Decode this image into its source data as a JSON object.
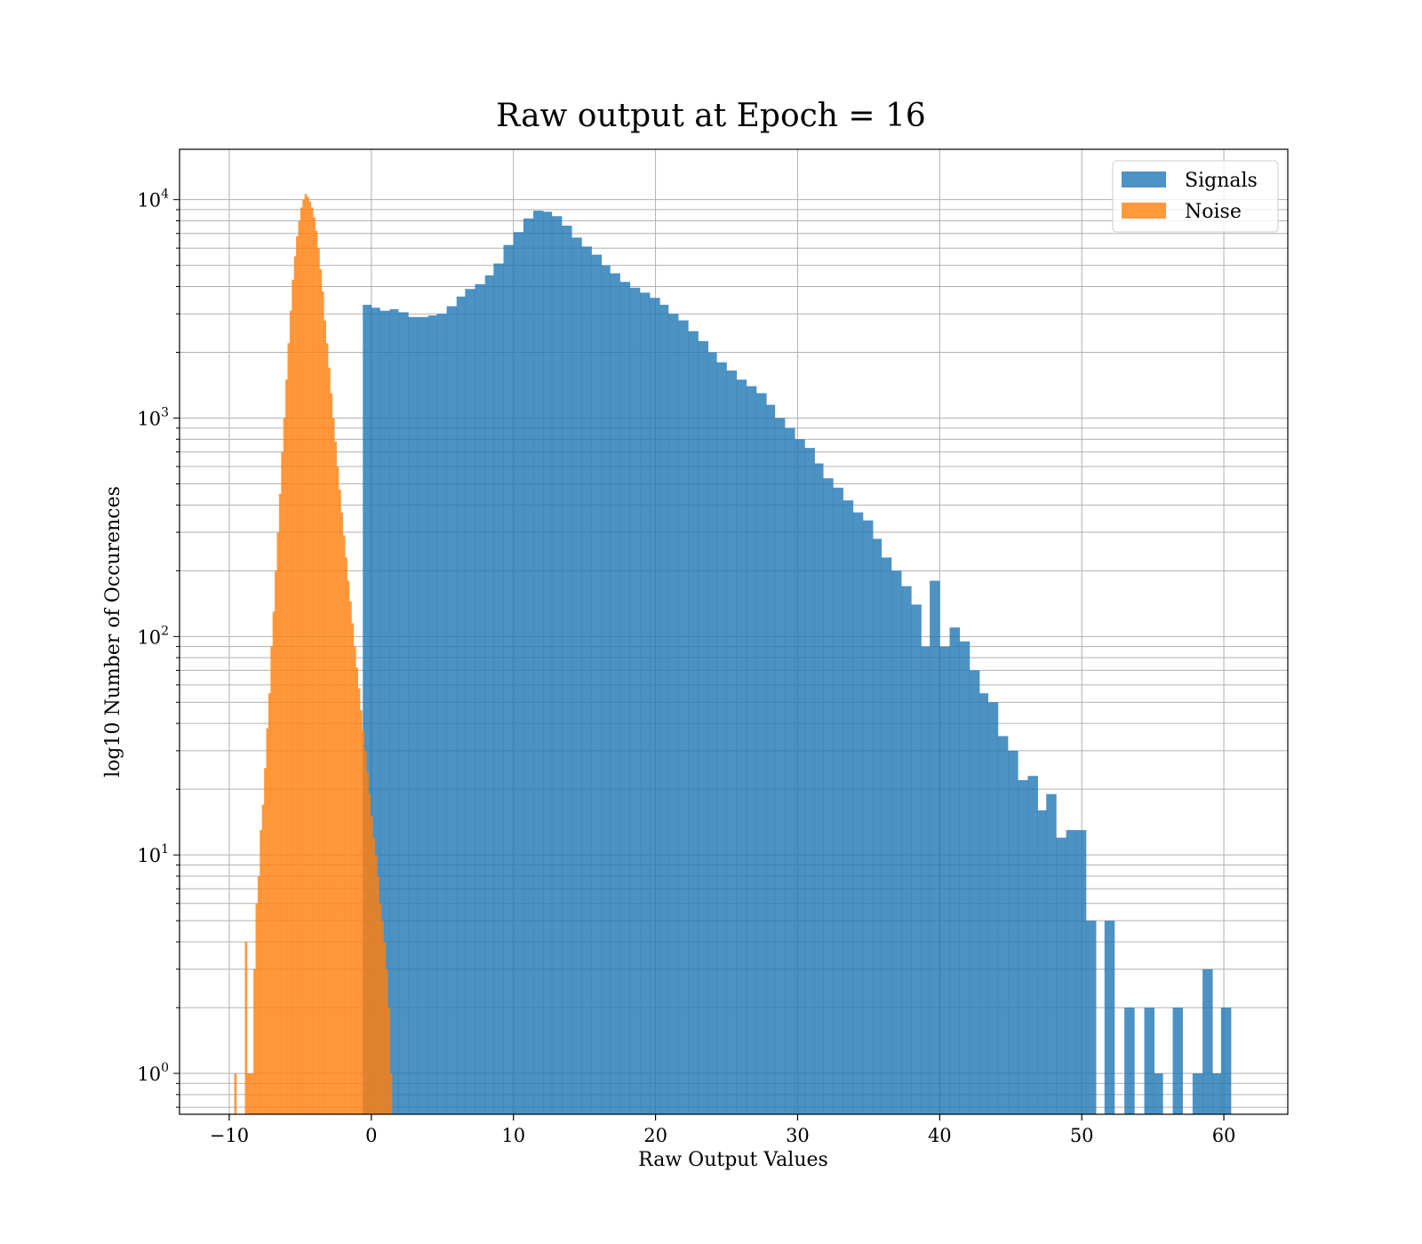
{
  "chart_data": {
    "type": "bar",
    "title": "Raw output at Epoch = 16",
    "xlabel": "Raw Output Values",
    "ylabel": "log10 Number of Occurences",
    "xlim": [
      -13.5,
      64.5
    ],
    "ylim": [
      0.65,
      17000
    ],
    "yscale": "log",
    "grid": true,
    "legend_position": "top-right",
    "x_ticks": [
      -10,
      0,
      10,
      20,
      30,
      40,
      50,
      60
    ],
    "x_tick_labels": [
      "−10",
      "0",
      "10",
      "20",
      "30",
      "40",
      "50",
      "60"
    ],
    "y_ticks": [
      {
        "value": 1,
        "base": "10",
        "exp": "0"
      },
      {
        "value": 10,
        "base": "10",
        "exp": "1"
      },
      {
        "value": 100,
        "base": "10",
        "exp": "2"
      },
      {
        "value": 1000,
        "base": "10",
        "exp": "3"
      },
      {
        "value": 10000,
        "base": "10",
        "exp": "4"
      }
    ],
    "series": [
      {
        "name": "Signals",
        "color": "#1f77b4",
        "bin_edges": [
          -0.6,
          0.0,
          0.6,
          1.3,
          1.9,
          2.6,
          3.3,
          4.0,
          4.6,
          5.3,
          6.0,
          6.6,
          7.3,
          8.0,
          8.6,
          9.3,
          10.0,
          10.7,
          11.4,
          12.1,
          12.7,
          13.4,
          14.1,
          14.8,
          15.5,
          16.2,
          16.8,
          17.5,
          18.2,
          18.9,
          19.6,
          20.3,
          20.9,
          21.6,
          22.3,
          23.0,
          23.7,
          24.3,
          25.0,
          25.7,
          26.4,
          27.1,
          27.8,
          28.4,
          29.1,
          29.8,
          30.5,
          31.2,
          31.8,
          32.5,
          33.2,
          33.9,
          34.6,
          35.3,
          35.9,
          36.6,
          37.3,
          38.0,
          38.7,
          39.3,
          40.0,
          40.7,
          41.4,
          42.1,
          42.8,
          43.4,
          44.1,
          44.8,
          45.5,
          46.2,
          46.9,
          47.5,
          48.2,
          48.9,
          49.6,
          50.3,
          51.0,
          51.6,
          52.3,
          53.0,
          53.7,
          54.4,
          55.1,
          55.7,
          56.4,
          57.1,
          57.8,
          58.5,
          59.2,
          59.8,
          60.5,
          61.2
        ],
        "counts": [
          3300,
          3200,
          3100,
          3150,
          3050,
          2900,
          2900,
          2950,
          3000,
          3250,
          3600,
          3900,
          4100,
          4500,
          5100,
          6200,
          7100,
          8200,
          8900,
          8800,
          8400,
          7600,
          6700,
          6100,
          5600,
          5000,
          4600,
          4200,
          3950,
          3750,
          3550,
          3300,
          3000,
          2800,
          2500,
          2250,
          2000,
          1800,
          1650,
          1500,
          1400,
          1300,
          1150,
          1000,
          900,
          800,
          730,
          620,
          530,
          480,
          420,
          370,
          340,
          280,
          230,
          200,
          170,
          140,
          90,
          180,
          90,
          110,
          95,
          70,
          55,
          50,
          35,
          30,
          22,
          23,
          16,
          19,
          12,
          13,
          13,
          5,
          0,
          5,
          0,
          2,
          0,
          2,
          1,
          0,
          2,
          0,
          1,
          3,
          1,
          2,
          0
        ]
      },
      {
        "name": "Noise",
        "color": "#ff7f0e",
        "bin_edges": [
          -9.65,
          -9.5,
          -9.35,
          -9.2,
          -9.05,
          -8.9,
          -8.75,
          -8.6,
          -8.45,
          -8.3,
          -8.15,
          -8.0,
          -7.85,
          -7.7,
          -7.55,
          -7.4,
          -7.25,
          -7.1,
          -6.95,
          -6.8,
          -6.65,
          -6.5,
          -6.35,
          -6.2,
          -6.05,
          -5.9,
          -5.75,
          -5.6,
          -5.45,
          -5.3,
          -5.15,
          -5.0,
          -4.85,
          -4.7,
          -4.55,
          -4.4,
          -4.25,
          -4.1,
          -3.95,
          -3.8,
          -3.65,
          -3.5,
          -3.35,
          -3.2,
          -3.05,
          -2.9,
          -2.75,
          -2.6,
          -2.45,
          -2.3,
          -2.15,
          -2.0,
          -1.85,
          -1.7,
          -1.55,
          -1.4,
          -1.25,
          -1.1,
          -0.95,
          -0.8,
          -0.65,
          -0.5,
          -0.35,
          -0.2,
          -0.05,
          0.1,
          0.25,
          0.4,
          0.55,
          0.7,
          0.85,
          1.0,
          1.15,
          1.3,
          1.45,
          1.6,
          1.75,
          1.9,
          2.05,
          2.2,
          2.35,
          2.5,
          2.65,
          2.8,
          2.95,
          3.1,
          3.25,
          3.4,
          3.55,
          3.7,
          3.85,
          4.0,
          4.15,
          4.3,
          4.45,
          4.6,
          4.75,
          4.9,
          5.05,
          5.2,
          5.35,
          5.5,
          5.65,
          5.8,
          5.95,
          6.1,
          6.25,
          6.4,
          6.55,
          6.7,
          6.85,
          7.0,
          7.15,
          7.3,
          7.45,
          7.6,
          7.75,
          7.9,
          8.05,
          8.2,
          8.35,
          8.5,
          8.65,
          8.8,
          8.95,
          9.1,
          9.25,
          9.4,
          9.55,
          9.7,
          9.85,
          10.0
        ],
        "counts": [
          1,
          0,
          0,
          0,
          0,
          4,
          1,
          1,
          1,
          3,
          6,
          8,
          13,
          17,
          25,
          38,
          55,
          90,
          130,
          200,
          300,
          450,
          700,
          1000,
          1500,
          2200,
          3100,
          4300,
          5500,
          6800,
          8000,
          9200,
          10000,
          10600,
          10300,
          9800,
          9200,
          8300,
          7200,
          6000,
          4800,
          3800,
          2800,
          2200,
          1700,
          1300,
          1000,
          780,
          600,
          470,
          370,
          290,
          230,
          180,
          145,
          115,
          90,
          72,
          58,
          46,
          37,
          30,
          24,
          19,
          15,
          12,
          10,
          8,
          6,
          5,
          4,
          3,
          2,
          1,
          0,
          0,
          0,
          0,
          0,
          0,
          0,
          0,
          0,
          0,
          0,
          0,
          0,
          0,
          0,
          0,
          0,
          0,
          0,
          0,
          0,
          0,
          0,
          0,
          0,
          0,
          0,
          0,
          0,
          0,
          0,
          0,
          0,
          0,
          0,
          0,
          0,
          0,
          0,
          0,
          0,
          0,
          0,
          0,
          0,
          0,
          0,
          0,
          0,
          0,
          0,
          0,
          0,
          0,
          0,
          0,
          0,
          0
        ]
      }
    ]
  }
}
